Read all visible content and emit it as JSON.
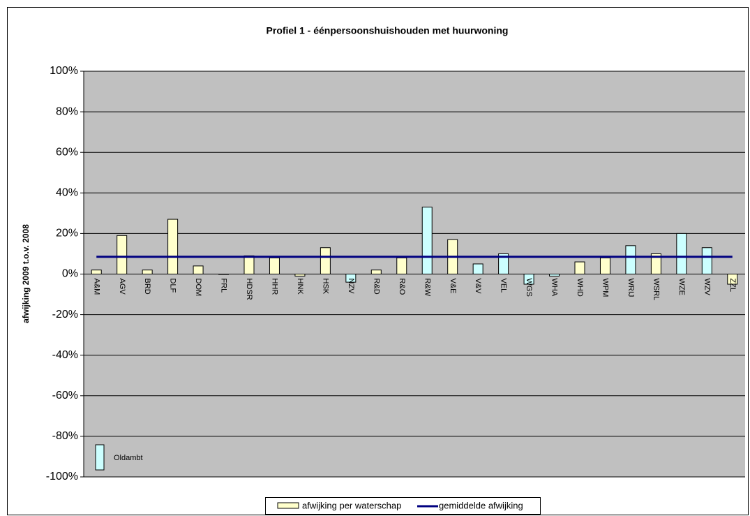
{
  "chart_data": {
    "type": "bar",
    "title": "Profiel 1 - éénpersoonshuishouden met huurwoning",
    "y_label": "afwijking 2009 t.o.v. 2008",
    "categories": [
      "A&M",
      "AGV",
      "BRD",
      "DLF",
      "DOM",
      "FRL",
      "HDSR",
      "HHR",
      "HNK",
      "HSK",
      "NZV",
      "R&D",
      "R&O",
      "R&W",
      "V&E",
      "V&V",
      "VEL",
      "WGS",
      "WHA",
      "WHD",
      "WPM",
      "WRIJ",
      "WSRL",
      "WZE",
      "WZV",
      "ZZL"
    ],
    "series": [
      {
        "name": "afwijking per waterschap",
        "type": "bar",
        "color": "#ffffcc",
        "colors": [
          "#ffffcc",
          "#ffffcc",
          "#ffffcc",
          "#ffffcc",
          "#ffffcc",
          "#ffffcc",
          "#ffffcc",
          "#ffffcc",
          "#ffffcc",
          "#ffffcc",
          "#ccffff",
          "#ffffcc",
          "#ffffcc",
          "#ccffff",
          "#ffffcc",
          "#ccffff",
          "#ccffff",
          "#ccffff",
          "#ccffff",
          "#ffffcc",
          "#ffffcc",
          "#ccffff",
          "#ffffcc",
          "#ccffff",
          "#ccffff",
          "#ffffcc"
        ],
        "values": [
          2,
          19,
          2,
          27,
          4,
          0,
          9,
          8,
          -1,
          13,
          -4,
          2,
          8,
          33,
          17,
          5,
          10,
          -5,
          -1,
          6,
          8,
          14,
          10,
          20,
          13,
          -5
        ]
      },
      {
        "name": "gemiddelde afwijking",
        "type": "line",
        "color": "#000080",
        "values": [
          8.5,
          8.5,
          8.5,
          8.5,
          8.5,
          8.5,
          8.5,
          8.5,
          8.5,
          8.5,
          8.5,
          8.5,
          8.5,
          8.5,
          8.5,
          8.5,
          8.5,
          8.5,
          8.5,
          8.5,
          8.5,
          8.5,
          8.5,
          8.5,
          8.5,
          8.5
        ]
      }
    ],
    "color_legend": {
      "label": "Oldambt",
      "color": "#ccffff"
    },
    "ylim": [
      -100,
      100
    ],
    "yticks": [
      {
        "value": -100,
        "label": "-100%"
      },
      {
        "value": -80,
        "label": "-80%"
      },
      {
        "value": -60,
        "label": "-60%"
      },
      {
        "value": -40,
        "label": "-40%"
      },
      {
        "value": -20,
        "label": "-20%"
      },
      {
        "value": 0,
        "label": "0%"
      },
      {
        "value": 20,
        "label": "20%"
      },
      {
        "value": 40,
        "label": "40%"
      },
      {
        "value": 60,
        "label": "60%"
      },
      {
        "value": 80,
        "label": "80%"
      },
      {
        "value": 100,
        "label": "100%"
      }
    ],
    "grid": true
  }
}
